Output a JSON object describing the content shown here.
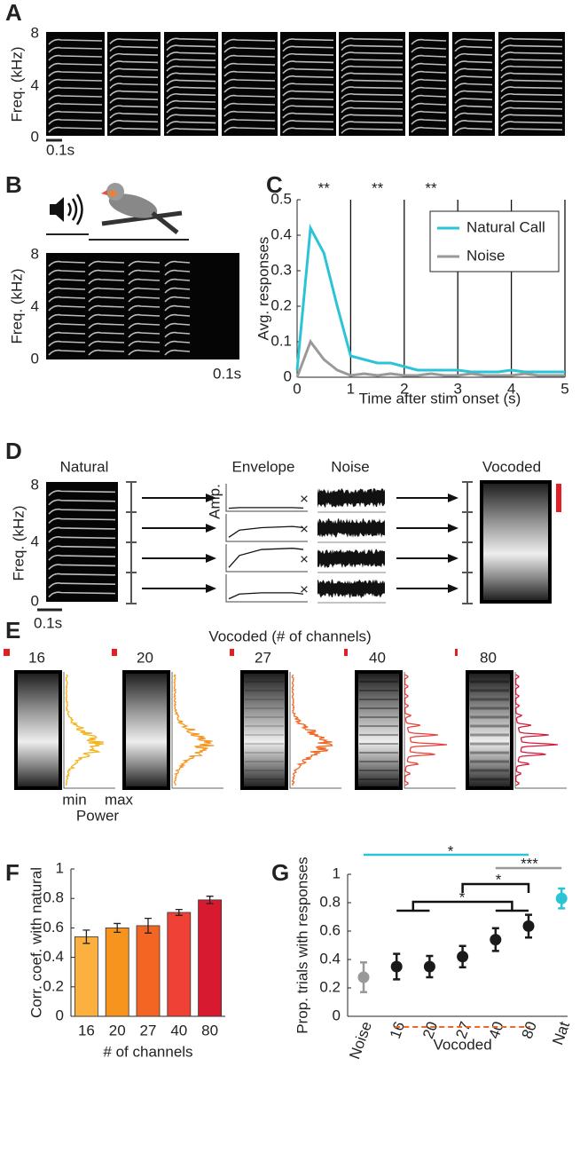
{
  "panel_labels": [
    "A",
    "B",
    "C",
    "D",
    "E",
    "F",
    "G"
  ],
  "panel_a": {
    "y_label": "Freq. (kHz)",
    "yticks": [
      0,
      4,
      8
    ],
    "scale_bar": "0.1s"
  },
  "panel_b": {
    "y_label": "Freq. (kHz)",
    "yticks": [
      0,
      4,
      8
    ],
    "scale_bar": "0.1s"
  },
  "panel_d": {
    "titles": [
      "Natural",
      "Envelope",
      "Noise",
      "Vocoded"
    ],
    "amp_label": "Amp.",
    "operator": "×",
    "y_label": "Freq. (kHz)",
    "yticks": [
      0,
      4,
      8
    ],
    "scale_bar": "0.1s"
  },
  "panel_e": {
    "title": "Vocoded (# of channels)",
    "channels": [
      "16",
      "20",
      "27",
      "40",
      "80"
    ],
    "power_min": "min",
    "power_max": "max",
    "power_label": "Power"
  },
  "chart_data": [
    {
      "type": "line",
      "x": [
        0,
        0.25,
        0.5,
        0.75,
        1,
        1.25,
        1.5,
        1.75,
        2,
        2.25,
        2.5,
        2.75,
        3,
        3.25,
        3.5,
        3.75,
        4,
        4.25,
        4.5,
        4.75,
        5
      ],
      "series": [
        {
          "name": "Natural Call",
          "color": "#2bc4d6",
          "values": [
            0.02,
            0.42,
            0.35,
            0.2,
            0.06,
            0.05,
            0.04,
            0.04,
            0.03,
            0.02,
            0.02,
            0.02,
            0.02,
            0.015,
            0.015,
            0.015,
            0.02,
            0.015,
            0.015,
            0.015,
            0.015
          ]
        },
        {
          "name": "Noise",
          "color": "#999999",
          "values": [
            0,
            0.1,
            0.05,
            0.02,
            0.005,
            0.01,
            0.005,
            0.01,
            0.005,
            0.005,
            0.01,
            0.005,
            0.005,
            0.01,
            0.005,
            0.005,
            0.005,
            0.01,
            0.005,
            0.005,
            0.005
          ]
        }
      ],
      "xlim": [
        0,
        5
      ],
      "ylim": [
        0,
        0.5
      ],
      "xticks": [
        0,
        1,
        2,
        3,
        4,
        5
      ],
      "yticks": [
        0,
        0.1,
        0.2,
        0.3,
        0.4,
        0.5
      ],
      "vlines": [
        1,
        2,
        3,
        4,
        5
      ],
      "annotations": [
        "**",
        "**",
        "**"
      ],
      "x_label": "Time after stim onset (s)",
      "y_label": "Avg. responses"
    },
    {
      "type": "bar",
      "categories": [
        "16",
        "20",
        "27",
        "40",
        "80"
      ],
      "values": [
        0.54,
        0.6,
        0.615,
        0.705,
        0.79
      ],
      "errors": [
        0.045,
        0.03,
        0.05,
        0.02,
        0.025
      ],
      "colors": [
        "#fbb040",
        "#f7941d",
        "#f26522",
        "#ef4136",
        "#d71a2f"
      ],
      "ylim": [
        0,
        1
      ],
      "yticks": [
        0,
        0.2,
        0.4,
        0.6,
        0.8,
        1
      ],
      "x_label": "# of channels",
      "y_label": "Corr. coef. with natural"
    },
    {
      "type": "errorbar",
      "categories": [
        "Noise",
        "16",
        "20",
        "27",
        "40",
        "80",
        "Nat"
      ],
      "values": [
        0.275,
        0.35,
        0.35,
        0.42,
        0.54,
        0.635,
        0.83
      ],
      "errors": [
        0.105,
        0.09,
        0.075,
        0.075,
        0.08,
        0.08,
        0.07
      ],
      "colors": [
        "#999999",
        "#1a1a1a",
        "#1a1a1a",
        "#1a1a1a",
        "#1a1a1a",
        "#1a1a1a",
        "#2bc4d6"
      ],
      "ylim": [
        0,
        1
      ],
      "yticks": [
        0,
        0.2,
        0.4,
        0.6,
        0.8,
        1
      ],
      "y_label": "Prop. trials with responses",
      "annotations": [
        "*",
        "***",
        "*",
        "*"
      ],
      "group_label": "Vocoded"
    }
  ]
}
